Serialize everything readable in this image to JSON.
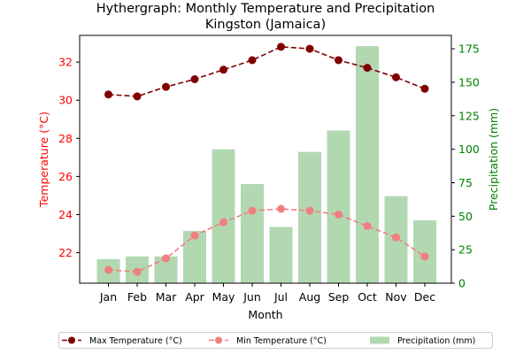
{
  "chart_data": {
    "type": "bar+line",
    "title_line1": "Hythergraph: Monthly Temperature and Precipitation",
    "title_line2": "Kingston (Jamaica)",
    "xlabel": "Month",
    "ylabel_left": "Temperature (°C)",
    "ylabel_right": "Precipitation (mm)",
    "categories": [
      "Jan",
      "Feb",
      "Mar",
      "Apr",
      "May",
      "Jun",
      "Jul",
      "Aug",
      "Sep",
      "Oct",
      "Nov",
      "Dec"
    ],
    "left_ylim": [
      20.4,
      33.4
    ],
    "left_ticks": [
      22,
      24,
      26,
      28,
      30,
      32
    ],
    "right_ylim": [
      0,
      185
    ],
    "right_ticks": [
      0,
      25,
      50,
      75,
      100,
      125,
      150,
      175
    ],
    "series": [
      {
        "name": "Max Temperature (°C)",
        "kind": "line",
        "axis": "left",
        "color": "#800000",
        "dashed": true,
        "values": [
          30.3,
          30.2,
          30.7,
          31.1,
          31.6,
          32.1,
          32.8,
          32.7,
          32.1,
          31.7,
          31.2,
          30.6
        ]
      },
      {
        "name": "Min Temperature (°C)",
        "kind": "line",
        "axis": "left",
        "color": "#f08080",
        "dashed": true,
        "values": [
          21.1,
          21.0,
          21.7,
          22.9,
          23.6,
          24.2,
          24.3,
          24.2,
          24.0,
          23.4,
          22.8,
          21.8
        ]
      },
      {
        "name": "Precipitation (mm)",
        "kind": "bar",
        "axis": "right",
        "color": "#b2d8b2",
        "values": [
          18,
          20,
          20,
          39,
          100,
          74,
          42,
          98,
          114,
          177,
          65,
          47
        ]
      }
    ],
    "legend_position": "bottom-center",
    "left_axis_color": "#ff0000",
    "right_axis_color": "#008000"
  }
}
